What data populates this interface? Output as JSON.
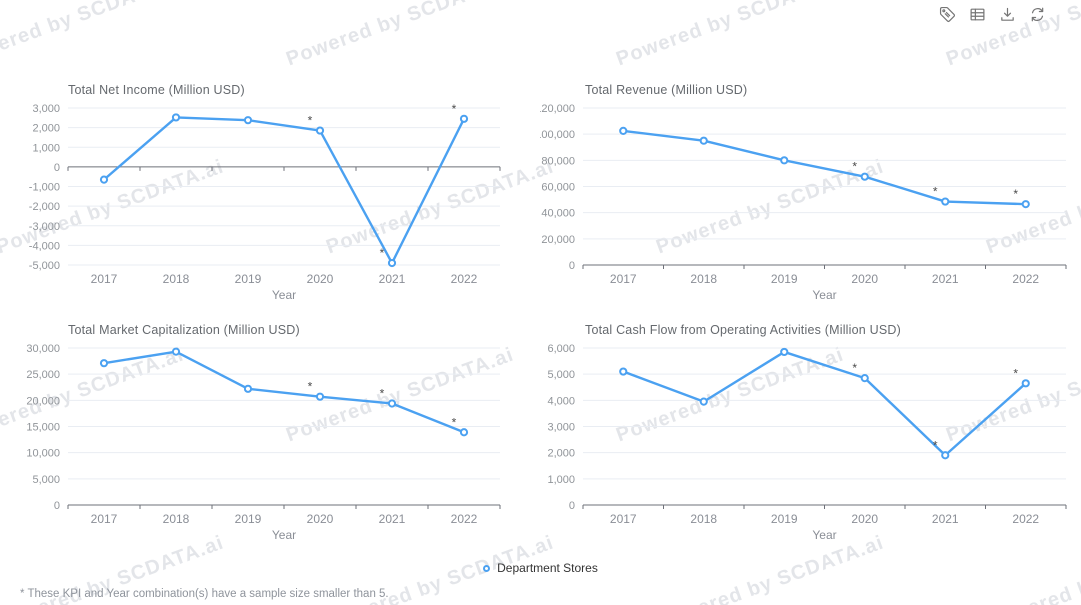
{
  "watermark": {
    "text": "Powered by SCDATA.ai"
  },
  "toolbar": {
    "icons": [
      {
        "name": "tag-icon"
      },
      {
        "name": "data-table-icon"
      },
      {
        "name": "download-icon"
      },
      {
        "name": "refresh-icon"
      }
    ]
  },
  "legend": {
    "label": "Department Stores",
    "series_color": "#4BA1F1"
  },
  "footnote": "* These KPI and Year combination(s) have a sample size smaller than 5.",
  "chart_data": [
    {
      "type": "line",
      "title": "Total Net Income (Million USD)",
      "xlabel": "Year",
      "categories": [
        "2017",
        "2018",
        "2019",
        "2020",
        "2021",
        "2022"
      ],
      "series": [
        {
          "name": "Department Stores",
          "values": [
            -650,
            2520,
            2380,
            1850,
            -4900,
            2450
          ]
        }
      ],
      "flagged": [
        false,
        false,
        false,
        true,
        true,
        true
      ],
      "ylim": [
        -5000,
        3000
      ],
      "ytick_step": 1000,
      "grid": true,
      "legend_position": "bottom-shared"
    },
    {
      "type": "line",
      "title": "Total Revenue (Million USD)",
      "xlabel": "Year",
      "categories": [
        "2017",
        "2018",
        "2019",
        "2020",
        "2021",
        "2022"
      ],
      "series": [
        {
          "name": "Department Stores",
          "values": [
            102500,
            95000,
            80000,
            67500,
            48500,
            46500
          ]
        }
      ],
      "flagged": [
        false,
        false,
        false,
        true,
        true,
        true
      ],
      "ylim": [
        0,
        120000
      ],
      "ytick_step": 20000,
      "grid": true,
      "legend_position": "bottom-shared"
    },
    {
      "type": "line",
      "title": "Total Market Capitalization (Million USD)",
      "xlabel": "Year",
      "categories": [
        "2017",
        "2018",
        "2019",
        "2020",
        "2021",
        "2022"
      ],
      "series": [
        {
          "name": "Department Stores",
          "values": [
            27100,
            29300,
            22200,
            20700,
            19400,
            13900
          ]
        }
      ],
      "flagged": [
        false,
        false,
        false,
        true,
        true,
        true
      ],
      "ylim": [
        0,
        30000
      ],
      "ytick_step": 5000,
      "grid": true,
      "legend_position": "bottom-shared"
    },
    {
      "type": "line",
      "title": "Total Cash Flow from Operating Activities (Million USD)",
      "xlabel": "Year",
      "categories": [
        "2017",
        "2018",
        "2019",
        "2020",
        "2021",
        "2022"
      ],
      "series": [
        {
          "name": "Department Stores",
          "values": [
            5100,
            3950,
            5850,
            4850,
            1900,
            4650
          ]
        }
      ],
      "flagged": [
        false,
        false,
        false,
        true,
        true,
        true
      ],
      "ylim": [
        0,
        6000
      ],
      "ytick_step": 1000,
      "grid": true,
      "legend_position": "bottom-shared"
    }
  ]
}
